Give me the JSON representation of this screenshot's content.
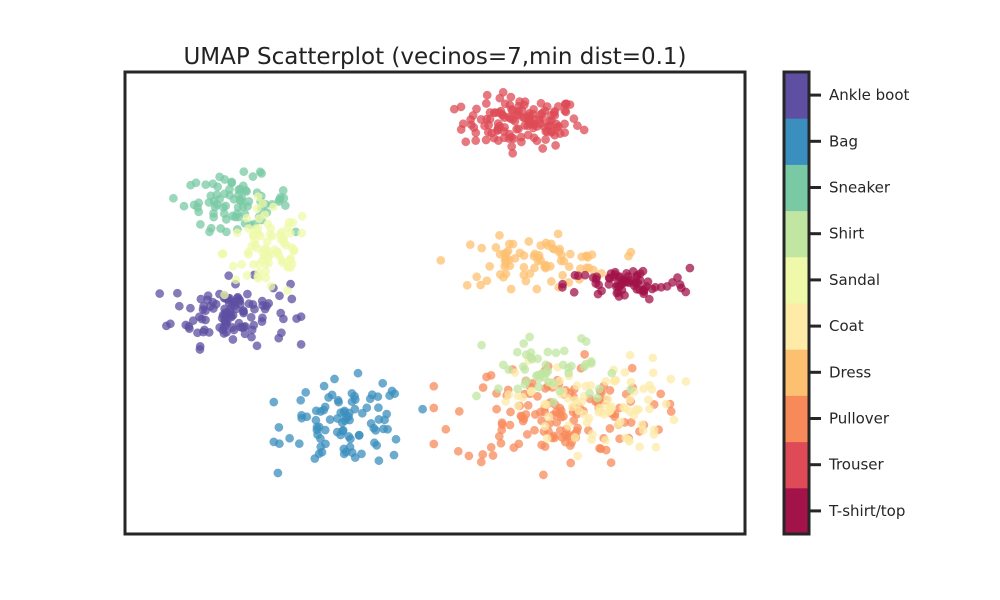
{
  "chart_data": {
    "type": "scatter",
    "title": "UMAP Scatterplot (vecinos=7,min dist=0.1)",
    "xlabel": "",
    "ylabel": "",
    "x_ticks_visible": false,
    "y_ticks_visible": false,
    "grid": false,
    "legend": "colorbar-right",
    "xlim": [
      0,
      10
    ],
    "ylim": [
      0,
      10
    ],
    "classes": [
      {
        "name": "T-shirt/top",
        "color": "#a2134a"
      },
      {
        "name": "Trouser",
        "color": "#de4b56"
      },
      {
        "name": "Pullover",
        "color": "#f88a59"
      },
      {
        "name": "Dress",
        "color": "#fdc070"
      },
      {
        "name": "Coat",
        "color": "#feeba8"
      },
      {
        "name": "Sandal",
        "color": "#eff9a9"
      },
      {
        "name": "Shirt",
        "color": "#c0e6a2"
      },
      {
        "name": "Sneaker",
        "color": "#78c9a4"
      },
      {
        "name": "Bag",
        "color": "#3b8fbe"
      },
      {
        "name": "Ankle boot",
        "color": "#5e4fa2"
      }
    ],
    "clusters": [
      {
        "class": "Trouser",
        "cx": 6.4,
        "cy": 8.9,
        "rx": 0.95,
        "ry": 0.55,
        "count": 130
      },
      {
        "class": "Ankle boot",
        "cx": 1.7,
        "cy": 4.8,
        "rx": 0.95,
        "ry": 0.7,
        "count": 110
      },
      {
        "class": "Sneaker",
        "cx": 1.8,
        "cy": 7.2,
        "rx": 0.85,
        "ry": 0.55,
        "count": 80
      },
      {
        "class": "Sandal",
        "cx": 2.3,
        "cy": 6.1,
        "rx": 0.7,
        "ry": 1.0,
        "count": 80
      },
      {
        "class": "Bag",
        "cx": 3.6,
        "cy": 2.4,
        "rx": 1.0,
        "ry": 0.9,
        "count": 90
      },
      {
        "class": "Dress",
        "cx": 6.6,
        "cy": 5.9,
        "rx": 1.3,
        "ry": 0.5,
        "count": 80
      },
      {
        "class": "T-shirt/top",
        "cx": 8.1,
        "cy": 5.4,
        "rx": 1.0,
        "ry": 0.35,
        "count": 70
      },
      {
        "class": "Pullover",
        "cx": 6.9,
        "cy": 2.6,
        "rx": 1.6,
        "ry": 1.1,
        "count": 140
      },
      {
        "class": "Coat",
        "cx": 7.6,
        "cy": 2.8,
        "rx": 1.3,
        "ry": 1.0,
        "count": 90
      },
      {
        "class": "Shirt",
        "cx": 6.9,
        "cy": 3.5,
        "rx": 1.1,
        "ry": 0.8,
        "count": 50
      }
    ]
  }
}
